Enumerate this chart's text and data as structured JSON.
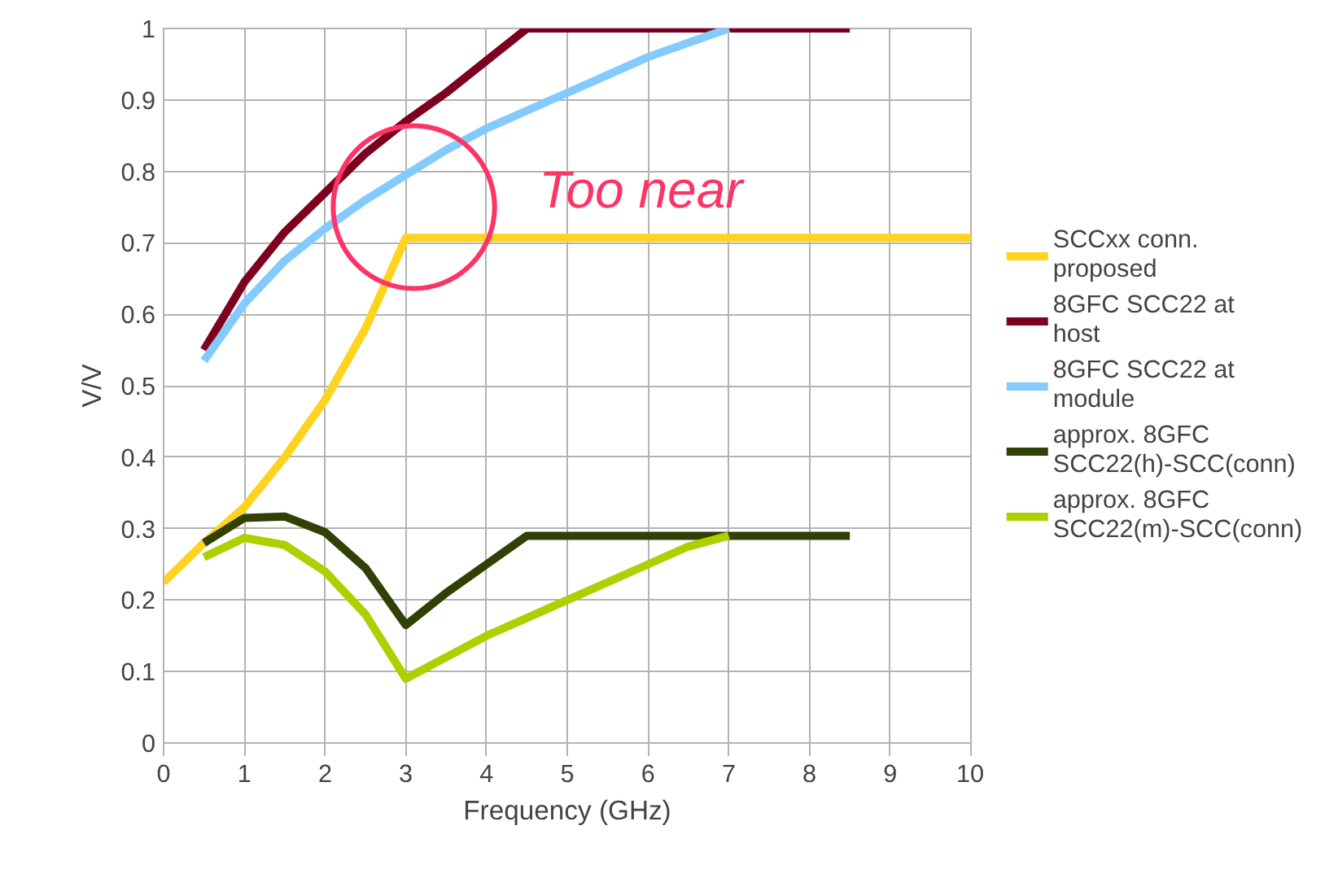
{
  "chart_data": {
    "type": "line",
    "xlabel": "Frequency (GHz)",
    "ylabel": "V/V",
    "xlim": [
      0,
      10
    ],
    "xticks": [
      0,
      1,
      2,
      3,
      4,
      5,
      6,
      7,
      8,
      9,
      10
    ],
    "ylim": [
      0,
      1
    ],
    "yticks": [
      0,
      0.1,
      0.2,
      0.3,
      0.4,
      0.5,
      0.6,
      0.7,
      0.8,
      0.9,
      1
    ],
    "grid": true,
    "legend": "right",
    "line_style": "solid",
    "marker": "none",
    "annotations": [
      "Too near"
    ],
    "series": [
      {
        "name": "SCCxx conn. proposed",
        "color": "#ffd320",
        "x": [
          0,
          0.5,
          1,
          1.5,
          2,
          2.5,
          3,
          10
        ],
        "values": [
          0.225,
          0.28,
          0.33,
          0.4,
          0.48,
          0.58,
          0.707,
          0.707
        ]
      },
      {
        "name": "8GFC SCC22 at host",
        "color": "#7e0021",
        "x": [
          0.5,
          1,
          1.5,
          2,
          2.5,
          3,
          3.5,
          4,
          4.5,
          8.5
        ],
        "values": [
          0.55,
          0.645,
          0.715,
          0.77,
          0.825,
          0.87,
          0.91,
          0.955,
          1.0,
          1.0
        ]
      },
      {
        "name": "8GFC SCC22 at module",
        "color": "#83caff",
        "x": [
          0.5,
          1,
          1.5,
          2,
          2.5,
          3,
          3.5,
          4,
          4.5,
          5,
          5.5,
          6,
          6.5,
          7
        ],
        "values": [
          0.535,
          0.615,
          0.675,
          0.72,
          0.76,
          0.795,
          0.83,
          0.86,
          0.885,
          0.91,
          0.935,
          0.96,
          0.98,
          1.0
        ]
      },
      {
        "name": "approx. 8GFC SCC22(h)-SCC(conn)",
        "color": "#314004",
        "x": [
          0.5,
          1,
          1.5,
          2,
          2.5,
          3,
          3.5,
          4,
          4.5,
          8.5
        ],
        "values": [
          0.28,
          0.315,
          0.317,
          0.295,
          0.245,
          0.165,
          0.21,
          0.25,
          0.29,
          0.29
        ]
      },
      {
        "name": "approx. 8GFC SCC22(m)-SCC(conn)",
        "color": "#aecf00",
        "x": [
          0.5,
          1,
          1.5,
          2,
          2.5,
          3,
          3.5,
          4,
          4.5,
          5,
          5.5,
          6,
          6.5,
          7
        ],
        "values": [
          0.26,
          0.287,
          0.277,
          0.24,
          0.18,
          0.09,
          0.12,
          0.15,
          0.175,
          0.2,
          0.225,
          0.25,
          0.275,
          0.29
        ]
      }
    ]
  }
}
